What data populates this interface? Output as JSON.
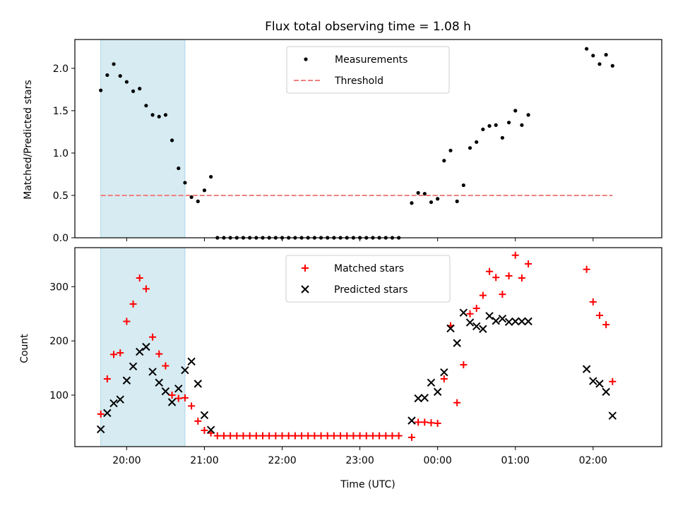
{
  "chart_data": [
    {
      "type": "scatter",
      "title": "Flux total observing time = 1.08 h",
      "xlabel": "",
      "ylabel": "Matched/Predicted stars",
      "ylim": [
        0,
        2.34
      ],
      "yticks": [
        "0.0",
        "0.5",
        "1.0",
        "1.5",
        "2.0"
      ],
      "xlim": [
        "19:20",
        "02:53"
      ],
      "x_unit": "time (UTC)",
      "shaded_span": [
        "19:40",
        "20:45"
      ],
      "shaded_color": "#add8e6",
      "legend_position": "top-center",
      "series": [
        {
          "name": "Measurements",
          "style": "dots",
          "color": "#000000",
          "points": [
            [
              "19:40",
              1.74
            ],
            [
              "19:45",
              1.92
            ],
            [
              "19:50",
              2.05
            ],
            [
              "19:55",
              1.91
            ],
            [
              "20:00",
              1.84
            ],
            [
              "20:05",
              1.73
            ],
            [
              "20:10",
              1.76
            ],
            [
              "20:15",
              1.56
            ],
            [
              "20:20",
              1.45
            ],
            [
              "20:25",
              1.43
            ],
            [
              "20:30",
              1.45
            ],
            [
              "20:35",
              1.15
            ],
            [
              "20:40",
              0.82
            ],
            [
              "20:45",
              0.65
            ],
            [
              "20:50",
              0.48
            ],
            [
              "20:55",
              0.43
            ],
            [
              "21:00",
              0.56
            ],
            [
              "21:05",
              0.72
            ],
            [
              "21:10",
              0
            ],
            [
              "21:15",
              0
            ],
            [
              "21:20",
              0
            ],
            [
              "21:25",
              0
            ],
            [
              "21:30",
              0
            ],
            [
              "21:35",
              0
            ],
            [
              "21:40",
              0
            ],
            [
              "21:45",
              0
            ],
            [
              "21:50",
              0
            ],
            [
              "21:55",
              0
            ],
            [
              "22:00",
              0
            ],
            [
              "22:05",
              0
            ],
            [
              "22:10",
              0
            ],
            [
              "22:15",
              0
            ],
            [
              "22:20",
              0
            ],
            [
              "22:25",
              0
            ],
            [
              "22:30",
              0
            ],
            [
              "22:35",
              0
            ],
            [
              "22:40",
              0
            ],
            [
              "22:45",
              0
            ],
            [
              "22:50",
              0
            ],
            [
              "22:55",
              0
            ],
            [
              "23:00",
              0
            ],
            [
              "23:05",
              0
            ],
            [
              "23:10",
              0
            ],
            [
              "23:15",
              0
            ],
            [
              "23:20",
              0
            ],
            [
              "23:25",
              0
            ],
            [
              "23:30",
              0
            ],
            [
              "23:40",
              0.41
            ],
            [
              "23:45",
              0.53
            ],
            [
              "23:50",
              0.52
            ],
            [
              "23:55",
              0.42
            ],
            [
              "00:00",
              0.46
            ],
            [
              "00:05",
              0.91
            ],
            [
              "00:10",
              1.03
            ],
            [
              "00:15",
              0.43
            ],
            [
              "00:20",
              0.62
            ],
            [
              "00:25",
              1.06
            ],
            [
              "00:30",
              1.13
            ],
            [
              "00:35",
              1.28
            ],
            [
              "00:40",
              1.32
            ],
            [
              "00:45",
              1.33
            ],
            [
              "00:50",
              1.18
            ],
            [
              "00:55",
              1.36
            ],
            [
              "01:00",
              1.5
            ],
            [
              "01:05",
              1.33
            ],
            [
              "01:10",
              1.45
            ],
            [
              "01:55",
              2.23
            ],
            [
              "02:00",
              2.15
            ],
            [
              "02:05",
              2.05
            ],
            [
              "02:10",
              2.16
            ],
            [
              "02:15",
              2.03
            ]
          ]
        },
        {
          "name": "Threshold",
          "style": "dashed-line",
          "color": "#f08080",
          "points": [
            [
              "19:40",
              0.5
            ],
            [
              "02:15",
              0.5
            ]
          ]
        }
      ]
    },
    {
      "type": "scatter",
      "title": "",
      "xlabel": "Time (UTC)",
      "ylabel": "Count",
      "ylim": [
        5,
        372
      ],
      "yticks": [
        "100",
        "200",
        "300"
      ],
      "xlim": [
        "19:20",
        "02:53"
      ],
      "xticks": [
        "20:00",
        "21:00",
        "22:00",
        "23:00",
        "00:00",
        "01:00",
        "02:00"
      ],
      "shaded_span": [
        "19:40",
        "20:45"
      ],
      "shaded_color": "#add8e6",
      "legend_position": "top-center",
      "series": [
        {
          "name": "Matched stars",
          "style": "plus",
          "color": "#ff0000",
          "points": [
            [
              "19:40",
              65
            ],
            [
              "19:45",
              130
            ],
            [
              "19:50",
              175
            ],
            [
              "19:55",
              178
            ],
            [
              "20:00",
              236
            ],
            [
              "20:05",
              268
            ],
            [
              "20:10",
              316
            ],
            [
              "20:15",
              296
            ],
            [
              "20:20",
              207
            ],
            [
              "20:25",
              176
            ],
            [
              "20:30",
              154
            ],
            [
              "20:35",
              100
            ],
            [
              "20:40",
              94
            ],
            [
              "20:45",
              95
            ],
            [
              "20:50",
              80
            ],
            [
              "20:55",
              52
            ],
            [
              "21:00",
              35
            ],
            [
              "21:05",
              30
            ],
            [
              "21:10",
              25
            ],
            [
              "21:15",
              25
            ],
            [
              "21:20",
              25
            ],
            [
              "21:25",
              25
            ],
            [
              "21:30",
              25
            ],
            [
              "21:35",
              25
            ],
            [
              "21:40",
              25
            ],
            [
              "21:45",
              25
            ],
            [
              "21:50",
              25
            ],
            [
              "21:55",
              25
            ],
            [
              "22:00",
              25
            ],
            [
              "22:05",
              25
            ],
            [
              "22:10",
              25
            ],
            [
              "22:15",
              25
            ],
            [
              "22:20",
              25
            ],
            [
              "22:25",
              25
            ],
            [
              "22:30",
              25
            ],
            [
              "22:35",
              25
            ],
            [
              "22:40",
              25
            ],
            [
              "22:45",
              25
            ],
            [
              "22:50",
              25
            ],
            [
              "22:55",
              25
            ],
            [
              "23:00",
              25
            ],
            [
              "23:05",
              25
            ],
            [
              "23:10",
              25
            ],
            [
              "23:15",
              25
            ],
            [
              "23:20",
              25
            ],
            [
              "23:25",
              25
            ],
            [
              "23:30",
              25
            ],
            [
              "23:40",
              22
            ],
            [
              "23:45",
              50
            ],
            [
              "23:50",
              50
            ],
            [
              "23:55",
              49
            ],
            [
              "00:00",
              48
            ],
            [
              "00:05",
              130
            ],
            [
              "00:10",
              228
            ],
            [
              "00:15",
              86
            ],
            [
              "00:20",
              156
            ],
            [
              "00:25",
              250
            ],
            [
              "00:30",
              260
            ],
            [
              "00:35",
              284
            ],
            [
              "00:40",
              328
            ],
            [
              "00:45",
              317
            ],
            [
              "00:50",
              286
            ],
            [
              "00:55",
              320
            ],
            [
              "01:00",
              358
            ],
            [
              "01:05",
              316
            ],
            [
              "01:10",
              342
            ],
            [
              "01:55",
              332
            ],
            [
              "02:00",
              272
            ],
            [
              "02:05",
              247
            ],
            [
              "02:10",
              230
            ],
            [
              "02:15",
              125
            ]
          ]
        },
        {
          "name": "Predicted stars",
          "style": "x",
          "color": "#000000",
          "points": [
            [
              "19:40",
              37
            ],
            [
              "19:45",
              67
            ],
            [
              "19:50",
              85
            ],
            [
              "19:55",
              92
            ],
            [
              "20:00",
              127
            ],
            [
              "20:05",
              153
            ],
            [
              "20:10",
              180
            ],
            [
              "20:15",
              189
            ],
            [
              "20:20",
              143
            ],
            [
              "20:25",
              123
            ],
            [
              "20:30",
              107
            ],
            [
              "20:35",
              87
            ],
            [
              "20:40",
              112
            ],
            [
              "20:45",
              146
            ],
            [
              "20:50",
              162
            ],
            [
              "20:55",
              121
            ],
            [
              "21:00",
              63
            ],
            [
              "21:05",
              36
            ],
            [
              "23:40",
              53
            ],
            [
              "23:45",
              94
            ],
            [
              "23:50",
              95
            ],
            [
              "23:55",
              123
            ],
            [
              "00:00",
              106
            ],
            [
              "00:05",
              142
            ],
            [
              "00:10",
              223
            ],
            [
              "00:15",
              196
            ],
            [
              "00:20",
              252
            ],
            [
              "00:25",
              234
            ],
            [
              "00:30",
              227
            ],
            [
              "00:35",
              222
            ],
            [
              "00:40",
              246
            ],
            [
              "00:45",
              237
            ],
            [
              "00:50",
              241
            ],
            [
              "00:55",
              235
            ],
            [
              "01:00",
              236
            ],
            [
              "01:05",
              236
            ],
            [
              "01:10",
              236
            ],
            [
              "01:55",
              148
            ],
            [
              "02:00",
              126
            ],
            [
              "02:05",
              121
            ],
            [
              "02:10",
              106
            ],
            [
              "02:15",
              62
            ]
          ]
        }
      ]
    }
  ]
}
